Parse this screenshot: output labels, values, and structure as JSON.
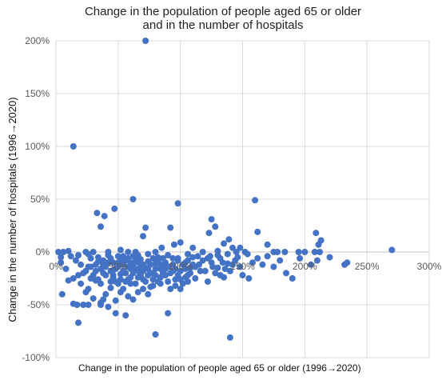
{
  "chart_data": {
    "type": "scatter",
    "title_lines": [
      "Change in the population of people aged 65 or older",
      "and in the number of hospitals"
    ],
    "xlabel": "Change in the population of people aged 65 or older (1996→2020)",
    "ylabel": "Change in the number of hospitals (1996→2020)",
    "xlim": [
      0,
      300
    ],
    "ylim": [
      -100,
      200
    ],
    "x_ticks": [
      "0%",
      "50%",
      "100%",
      "150%",
      "200%",
      "250%",
      "300%"
    ],
    "y_ticks": [
      "-100%",
      "-50%",
      "0%",
      "50%",
      "100%",
      "150%",
      "200%"
    ],
    "grid": true,
    "series": [
      {
        "points": [
          [
            72,
            200
          ],
          [
            14,
            100
          ],
          [
            62,
            50
          ],
          [
            98,
            46
          ],
          [
            47,
            41
          ],
          [
            33,
            37
          ],
          [
            39,
            34
          ],
          [
            125,
            31
          ],
          [
            36,
            24
          ],
          [
            72,
            23
          ],
          [
            128,
            24
          ],
          [
            92,
            23
          ],
          [
            139,
            12
          ],
          [
            184,
            0
          ],
          [
            209,
            18
          ],
          [
            162,
            19
          ],
          [
            123,
            18
          ],
          [
            70,
            15
          ],
          [
            148,
            4
          ],
          [
            160,
            49
          ],
          [
            213,
            11
          ],
          [
            211,
            7
          ],
          [
            270,
            2
          ],
          [
            2,
            0
          ],
          [
            6,
            0
          ],
          [
            10,
            1
          ],
          [
            24,
            0
          ],
          [
            30,
            0
          ],
          [
            42,
            0
          ],
          [
            52,
            2
          ],
          [
            58,
            0
          ],
          [
            64,
            0
          ],
          [
            80,
            0
          ],
          [
            85,
            4
          ],
          [
            95,
            7
          ],
          [
            100,
            9
          ],
          [
            110,
            4
          ],
          [
            118,
            0
          ],
          [
            130,
            1
          ],
          [
            135,
            8
          ],
          [
            142,
            4
          ],
          [
            145,
            0
          ],
          [
            152,
            0
          ],
          [
            170,
            7
          ],
          [
            175,
            0
          ],
          [
            178,
            0
          ],
          [
            195,
            0
          ],
          [
            200,
            0
          ],
          [
            208,
            0
          ],
          [
            212,
            0
          ],
          [
            4,
            -10
          ],
          [
            8,
            -16
          ],
          [
            16,
            -8
          ],
          [
            20,
            -12
          ],
          [
            22,
            -20
          ],
          [
            26,
            -14
          ],
          [
            28,
            -25
          ],
          [
            32,
            -18
          ],
          [
            34,
            -9
          ],
          [
            36,
            -30
          ],
          [
            38,
            -12
          ],
          [
            40,
            -22
          ],
          [
            44,
            -6
          ],
          [
            46,
            -17
          ],
          [
            48,
            -28
          ],
          [
            50,
            -10
          ],
          [
            52,
            -21
          ],
          [
            54,
            -35
          ],
          [
            56,
            -8
          ],
          [
            58,
            -14
          ],
          [
            60,
            -24
          ],
          [
            62,
            -12
          ],
          [
            64,
            -30
          ],
          [
            66,
            -18
          ],
          [
            68,
            -7
          ],
          [
            70,
            -26
          ],
          [
            72,
            -15
          ],
          [
            74,
            -9
          ],
          [
            76,
            -33
          ],
          [
            78,
            -20
          ],
          [
            80,
            -11
          ],
          [
            82,
            -28
          ],
          [
            84,
            -16
          ],
          [
            86,
            -6
          ],
          [
            88,
            -22
          ],
          [
            90,
            -14
          ],
          [
            92,
            -35
          ],
          [
            94,
            -12
          ],
          [
            96,
            -26
          ],
          [
            98,
            -8
          ],
          [
            100,
            -18
          ],
          [
            102,
            -30
          ],
          [
            104,
            -10
          ],
          [
            106,
            -22
          ],
          [
            108,
            -15
          ],
          [
            110,
            -5
          ],
          [
            112,
            -25
          ],
          [
            115,
            -12
          ],
          [
            118,
            -8
          ],
          [
            120,
            -18
          ],
          [
            122,
            -28
          ],
          [
            125,
            -10
          ],
          [
            128,
            -20
          ],
          [
            130,
            -15
          ],
          [
            132,
            -6
          ],
          [
            135,
            -24
          ],
          [
            138,
            -11
          ],
          [
            140,
            -18
          ],
          [
            144,
            -8
          ],
          [
            148,
            -14
          ],
          [
            150,
            -22
          ],
          [
            155,
            -25
          ],
          [
            158,
            -10
          ],
          [
            162,
            -6
          ],
          [
            166,
            -12
          ],
          [
            170,
            -4
          ],
          [
            175,
            -14
          ],
          [
            180,
            -8
          ],
          [
            185,
            -20
          ],
          [
            190,
            -25
          ],
          [
            196,
            -6
          ],
          [
            205,
            -12
          ],
          [
            210,
            -8
          ],
          [
            220,
            -5
          ],
          [
            232,
            -12
          ],
          [
            234,
            -10
          ],
          [
            20,
            -30
          ],
          [
            24,
            -38
          ],
          [
            30,
            -44
          ],
          [
            36,
            -48
          ],
          [
            40,
            -40
          ],
          [
            44,
            -34
          ],
          [
            48,
            -46
          ],
          [
            52,
            -38
          ],
          [
            58,
            -42
          ],
          [
            62,
            -45
          ],
          [
            66,
            -38
          ],
          [
            70,
            -35
          ],
          [
            74,
            -40
          ],
          [
            78,
            -32
          ],
          [
            84,
            -30
          ],
          [
            90,
            -28
          ],
          [
            96,
            -32
          ],
          [
            100,
            -35
          ],
          [
            10,
            -27
          ],
          [
            14,
            -25
          ],
          [
            18,
            -22
          ],
          [
            26,
            -35
          ],
          [
            32,
            -27
          ],
          [
            46,
            -22
          ],
          [
            54,
            -18
          ],
          [
            60,
            -30
          ],
          [
            5,
            -40
          ],
          [
            14,
            -49
          ],
          [
            17,
            -50
          ],
          [
            22,
            -50
          ],
          [
            26,
            -50
          ],
          [
            38,
            -45
          ],
          [
            36,
            -50
          ],
          [
            42,
            -52
          ],
          [
            48,
            -58
          ],
          [
            56,
            -60
          ],
          [
            18,
            -67
          ],
          [
            90,
            -58
          ],
          [
            80,
            -78
          ],
          [
            140,
            -81
          ],
          [
            4,
            -5
          ],
          [
            12,
            -4
          ],
          [
            18,
            -3
          ],
          [
            26,
            -2
          ],
          [
            34,
            -5
          ],
          [
            42,
            -3
          ],
          [
            50,
            -4
          ],
          [
            58,
            -6
          ],
          [
            66,
            -3
          ],
          [
            74,
            -2
          ],
          [
            82,
            -5
          ],
          [
            90,
            -3
          ],
          [
            98,
            -6
          ],
          [
            106,
            -2
          ],
          [
            114,
            -4
          ],
          [
            122,
            -6
          ],
          [
            130,
            -3
          ],
          [
            138,
            -2
          ],
          [
            146,
            -5
          ],
          [
            154,
            -2
          ],
          [
            28,
            -6
          ],
          [
            32,
            -12
          ],
          [
            36,
            -16
          ],
          [
            38,
            -20
          ],
          [
            42,
            -10
          ],
          [
            44,
            -18
          ],
          [
            46,
            -24
          ],
          [
            50,
            -14
          ],
          [
            52,
            -8
          ],
          [
            54,
            -12
          ],
          [
            56,
            -20
          ],
          [
            58,
            -26
          ],
          [
            60,
            -16
          ],
          [
            62,
            -20
          ],
          [
            64,
            -8
          ],
          [
            66,
            -24
          ],
          [
            68,
            -14
          ],
          [
            70,
            -18
          ],
          [
            74,
            -22
          ],
          [
            76,
            -12
          ],
          [
            78,
            -6
          ],
          [
            80,
            -16
          ],
          [
            84,
            -24
          ],
          [
            86,
            -14
          ],
          [
            88,
            -10
          ],
          [
            92,
            -20
          ],
          [
            94,
            -6
          ],
          [
            96,
            -16
          ],
          [
            102,
            -12
          ],
          [
            104,
            -24
          ],
          [
            106,
            -8
          ],
          [
            108,
            -20
          ],
          [
            112,
            -14
          ],
          [
            116,
            -18
          ],
          [
            124,
            -4
          ],
          [
            126,
            -14
          ],
          [
            132,
            -22
          ],
          [
            134,
            -10
          ],
          [
            136,
            -16
          ],
          [
            142,
            -12
          ],
          [
            24,
            -18
          ],
          [
            28,
            -14
          ],
          [
            30,
            -22
          ],
          [
            34,
            -26
          ],
          [
            38,
            -8
          ],
          [
            40,
            -14
          ],
          [
            44,
            -28
          ],
          [
            46,
            -10
          ],
          [
            48,
            -16
          ],
          [
            50,
            -30
          ],
          [
            52,
            -26
          ],
          [
            54,
            -4
          ],
          [
            56,
            -28
          ],
          [
            60,
            -10
          ],
          [
            62,
            -4
          ],
          [
            64,
            -16
          ],
          [
            66,
            -10
          ],
          [
            68,
            -22
          ],
          [
            70,
            -12
          ],
          [
            72,
            -28
          ],
          [
            74,
            -16
          ],
          [
            76,
            -20
          ],
          [
            78,
            -26
          ],
          [
            80,
            -22
          ],
          [
            82,
            -8
          ],
          [
            84,
            -12
          ],
          [
            86,
            -20
          ],
          [
            88,
            -16
          ],
          [
            94,
            -18
          ],
          [
            98,
            -22
          ],
          [
            100,
            -26
          ],
          [
            104,
            -16
          ],
          [
            106,
            -28
          ],
          [
            110,
            -12
          ]
        ]
      }
    ]
  }
}
